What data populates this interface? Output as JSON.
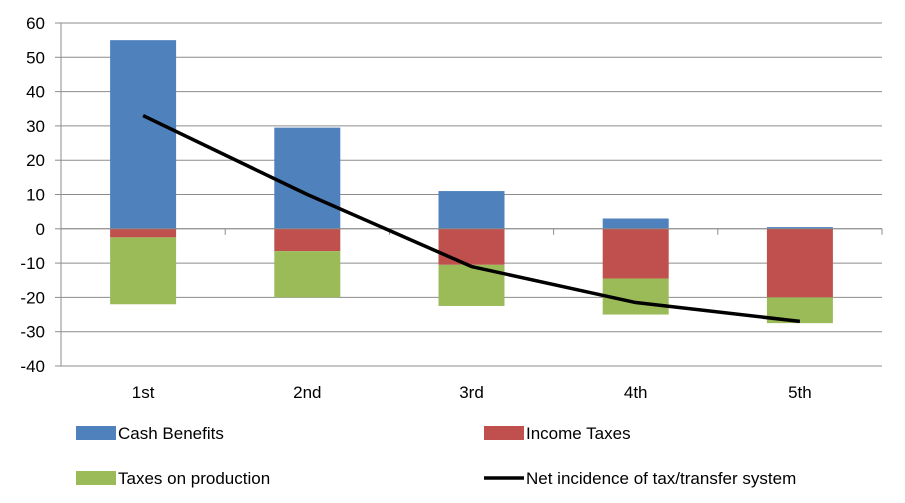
{
  "chart_data": {
    "type": "bar",
    "stacked": true,
    "categories": [
      "1st",
      "2nd",
      "3rd",
      "4th",
      "5th"
    ],
    "series": [
      {
        "name": "Cash Benefits",
        "kind": "bar",
        "color": "#4F81BD",
        "values": [
          55,
          29.5,
          11,
          3,
          0.5
        ]
      },
      {
        "name": "Income Taxes",
        "kind": "bar",
        "color": "#C0504D",
        "values": [
          -2.5,
          -6.5,
          -10.5,
          -14.5,
          -20
        ]
      },
      {
        "name": "Taxes on production",
        "kind": "bar",
        "color": "#9BBB59",
        "values": [
          -19.5,
          -13.5,
          -12,
          -10.5,
          -7.5
        ]
      },
      {
        "name": "Net incidence of tax/transfer system",
        "kind": "line",
        "color": "#000000",
        "values": [
          33,
          10,
          -11,
          -21.5,
          -27
        ]
      }
    ],
    "ylim": [
      -40,
      60
    ],
    "yticks": [
      -40,
      -30,
      -20,
      -10,
      0,
      10,
      20,
      30,
      40,
      50,
      60
    ],
    "grid": true,
    "legend_position": "bottom"
  }
}
